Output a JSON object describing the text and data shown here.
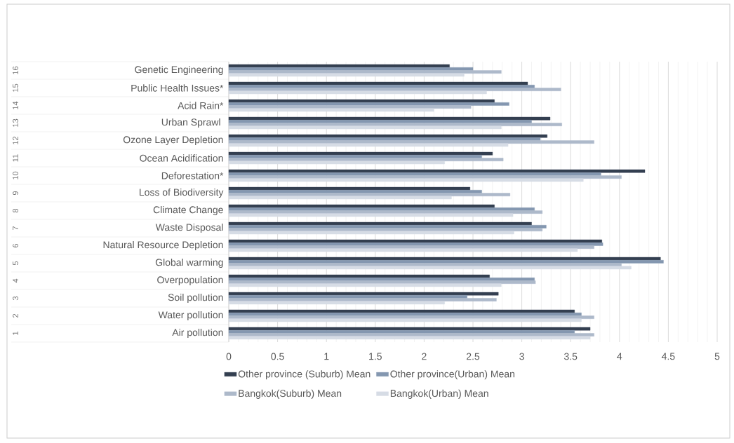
{
  "chart_data": {
    "type": "bar",
    "orientation": "horizontal",
    "categories": [
      "Genetic Engineering",
      "Public Health Issues*",
      "Acid Rain*",
      "Urban Sprawl ",
      "Ozone Layer Depletion",
      "Ocean Acidification",
      "Deforestation*",
      "Loss of Biodiversity",
      "Climate Change",
      "Waste Disposal",
      "Natural Resource Depletion",
      "Global warming",
      "Overpopulation",
      "Soil pollution",
      "Water pollution",
      "Air pollution"
    ],
    "annotations": [
      "16",
      "15",
      "14",
      "13",
      "12",
      "11",
      "10",
      "9",
      "8",
      "7",
      "6",
      "5",
      "4",
      "3",
      "2",
      "1"
    ],
    "series": [
      {
        "name": "Other province (Suburb) Mean",
        "color": "#333f50",
        "values": [
          2.26,
          3.06,
          2.72,
          3.29,
          3.26,
          2.7,
          4.26,
          2.47,
          2.72,
          3.1,
          3.82,
          4.42,
          2.67,
          2.76,
          3.54,
          3.7
        ]
      },
      {
        "name": "Other province(Urban) Mean",
        "color": "#8497b0",
        "values": [
          2.5,
          3.13,
          2.87,
          3.1,
          3.19,
          2.59,
          3.81,
          2.59,
          3.13,
          3.25,
          3.83,
          4.45,
          3.13,
          2.44,
          3.61,
          3.54
        ]
      },
      {
        "name": "Bangkok(Suburb) Mean",
        "color": "#adb9ca",
        "values": [
          2.79,
          3.4,
          2.48,
          3.41,
          3.74,
          2.81,
          4.02,
          2.88,
          3.21,
          3.21,
          3.74,
          4.02,
          3.14,
          2.74,
          3.74,
          3.74
        ]
      },
      {
        "name": "Bangkok(Urban) Mean",
        "color": "#d6dce5",
        "values": [
          2.41,
          2.64,
          2.1,
          2.79,
          2.86,
          2.21,
          3.63,
          2.28,
          2.91,
          2.92,
          3.57,
          4.12,
          2.79,
          2.21,
          3.61,
          3.7
        ]
      }
    ],
    "xlim": [
      0,
      5
    ],
    "xticks": [
      0,
      0.5,
      1,
      1.5,
      2,
      2.5,
      3,
      3.5,
      4,
      4.5,
      5
    ],
    "grid": "x",
    "legend": "bottom"
  }
}
